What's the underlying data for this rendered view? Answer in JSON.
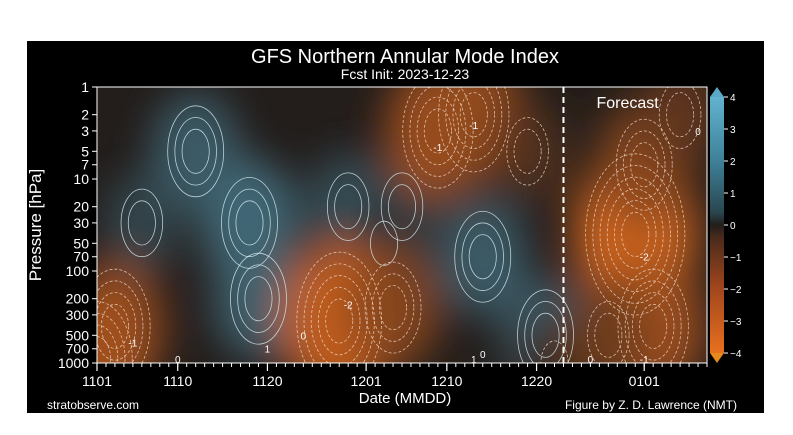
{
  "chart_data": {
    "type": "heatmap",
    "title": "GFS Northern Annular Mode Index",
    "subtitle": "Fcst Init: 2023-12-23",
    "xlabel": "Date (MMDD)",
    "ylabel": "Pressure [hPa]",
    "x_ticks": [
      "1101",
      "1110",
      "1120",
      "1201",
      "1210",
      "1220",
      "0101"
    ],
    "x_range": [
      "2023-11-01",
      "2024-01-08"
    ],
    "y_ticks": [
      1,
      2,
      3,
      5,
      7,
      10,
      20,
      30,
      50,
      70,
      100,
      200,
      300,
      500,
      700,
      1000
    ],
    "y_scale": "log",
    "y_range": [
      1,
      1000
    ],
    "y_inverted": true,
    "colorbar": {
      "ticks": [
        4,
        3,
        2,
        1,
        0,
        -1,
        -2,
        -3,
        -4
      ],
      "extend": "both",
      "colors": {
        "high": "#5aa8c4",
        "mid": "#231d1b",
        "low": "#e06a1c"
      }
    },
    "forecast_start": "2023-12-23",
    "forecast_label": "Forecast",
    "contour_labels": [
      "-1",
      "-1",
      "-2",
      "-1",
      "0",
      "1",
      "0",
      "-2",
      "0",
      "-1",
      "1",
      "0",
      "0"
    ],
    "credits": {
      "left": "stratobserve.com",
      "right": "Figure by Z. D. Lawrence (NMT)"
    },
    "anomalies": [
      {
        "date": "2023-11-18",
        "p": 30,
        "value": 1.7
      },
      {
        "date": "2023-11-19",
        "p": 200,
        "value": 1.5
      },
      {
        "date": "2023-11-12",
        "p": 5,
        "value": 1.4
      },
      {
        "date": "2023-11-06",
        "p": 30,
        "value": 0.9
      },
      {
        "date": "2023-11-29",
        "p": 20,
        "value": 1.1
      },
      {
        "date": "2023-12-05",
        "p": 20,
        "value": 0.8
      },
      {
        "date": "2023-12-14",
        "p": 70,
        "value": 1.4
      },
      {
        "date": "2023-12-21",
        "p": 500,
        "value": 1.3
      },
      {
        "date": "2023-12-03",
        "p": 50,
        "value": 0.5
      },
      {
        "date": "2023-11-03",
        "p": 400,
        "value": -1.8
      },
      {
        "date": "2023-11-01",
        "p": 900,
        "value": -2.0
      },
      {
        "date": "2023-11-28",
        "p": 350,
        "value": -2.6
      },
      {
        "date": "2023-12-04",
        "p": 250,
        "value": -1.6
      },
      {
        "date": "2023-12-09",
        "p": 3,
        "value": -2.0
      },
      {
        "date": "2023-12-13",
        "p": 2,
        "value": -1.8
      },
      {
        "date": "2023-12-19",
        "p": 5,
        "value": -0.8
      },
      {
        "date": "2023-12-22",
        "p": 1000,
        "value": -0.4
      },
      {
        "date": "2023-12-31",
        "p": 40,
        "value": -2.8
      },
      {
        "date": "2024-01-01",
        "p": 7,
        "value": -1.6
      },
      {
        "date": "2024-01-02",
        "p": 400,
        "value": -2.0
      },
      {
        "date": "2023-12-28",
        "p": 500,
        "value": -1.2
      },
      {
        "date": "2024-01-05",
        "p": 2,
        "value": -1.0
      }
    ]
  }
}
